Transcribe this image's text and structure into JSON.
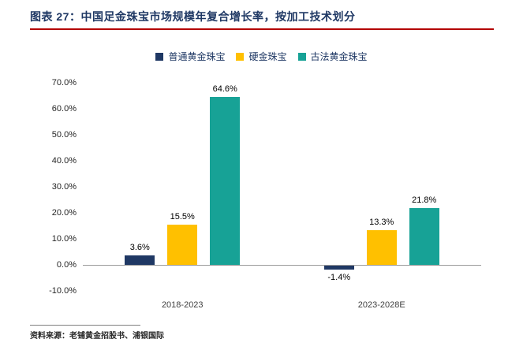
{
  "header": {
    "title": "图表 27：中国足金珠宝市场规模年复合增长率，按加工技术划分"
  },
  "chart_data": {
    "type": "bar",
    "title": "中国足金珠宝市场规模年复合增长率，按加工技术划分",
    "categories": [
      "2018-2023",
      "2023-2028E"
    ],
    "series": [
      {
        "name": "普通黄金珠宝",
        "color": "#1F3864",
        "values": [
          3.6,
          -1.4
        ]
      },
      {
        "name": "硬金珠宝",
        "color": "#FFC000",
        "values": [
          15.5,
          13.3
        ]
      },
      {
        "name": "古法黄金珠宝",
        "color": "#17A296",
        "values": [
          64.6,
          21.8
        ]
      }
    ],
    "value_labels": [
      [
        "3.6%",
        "-1.4%"
      ],
      [
        "15.5%",
        "13.3%"
      ],
      [
        "64.6%",
        "21.8%"
      ]
    ],
    "value_suffix": "%",
    "ylim": [
      -10,
      70
    ],
    "y_ticks": [
      "70.0%",
      "60.0%",
      "50.0%",
      "40.0%",
      "30.0%",
      "20.0%",
      "10.0%",
      "0.0%",
      "-10.0%"
    ],
    "grid": false,
    "legend_position": "top"
  },
  "footer": {
    "source": "资料来源：老铺黄金招股书、浦银国际"
  },
  "colors": {
    "title": "#1F3864",
    "title_rule": "#B30000",
    "axis_line": "#9B9B9B"
  }
}
